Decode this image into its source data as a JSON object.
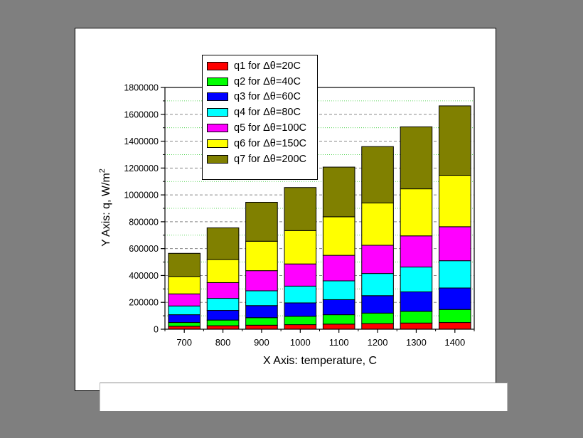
{
  "chart_data": {
    "type": "bar",
    "stacked": true,
    "xlabel": "X Axis: temperature, C",
    "ylabel_main": "Y Axis: q, W/m",
    "ylabel_sup": "2",
    "categories": [
      "700",
      "800",
      "900",
      "1000",
      "1100",
      "1200",
      "1300",
      "1400"
    ],
    "ylim": [
      0,
      1800000
    ],
    "yticks": [
      0,
      200000,
      400000,
      600000,
      800000,
      1000000,
      1200000,
      1400000,
      1600000,
      1800000
    ],
    "ytick_labels": [
      "0",
      "200000",
      "400000",
      "600000",
      "800000",
      "1000000",
      "1200000",
      "1400000",
      "1600000",
      "1800000"
    ],
    "grid": true,
    "legend_position": "top-left",
    "series": [
      {
        "name": "q1 for Δθ=20C",
        "color": "#ff0000",
        "values": [
          22000,
          26000,
          30000,
          34000,
          38000,
          42000,
          46000,
          50000
        ]
      },
      {
        "name": "q2 for Δθ=40C",
        "color": "#00ff00",
        "values": [
          28000,
          42000,
          56000,
          62000,
          70000,
          78000,
          87000,
          97000
        ]
      },
      {
        "name": "q3 for Δθ=60C",
        "color": "#0000ff",
        "values": [
          58000,
          72000,
          90000,
          100000,
          112000,
          130000,
          145000,
          160000
        ]
      },
      {
        "name": "q4 for Δθ=80C",
        "color": "#00ffff",
        "values": [
          65000,
          90000,
          110000,
          125000,
          140000,
          165000,
          185000,
          203000
        ]
      },
      {
        "name": "q5 for Δθ=100C",
        "color": "#ff00ff",
        "values": [
          90000,
          117000,
          150000,
          165000,
          190000,
          210000,
          232000,
          253000
        ]
      },
      {
        "name": "q6 for Δθ=150C",
        "color": "#ffff00",
        "values": [
          130000,
          173000,
          219000,
          248000,
          287000,
          315000,
          350000,
          383000
        ]
      },
      {
        "name": "q7 for Δθ=200C",
        "color": "#808000",
        "values": [
          172000,
          235000,
          290000,
          321000,
          370000,
          420000,
          462000,
          517000
        ]
      }
    ]
  }
}
